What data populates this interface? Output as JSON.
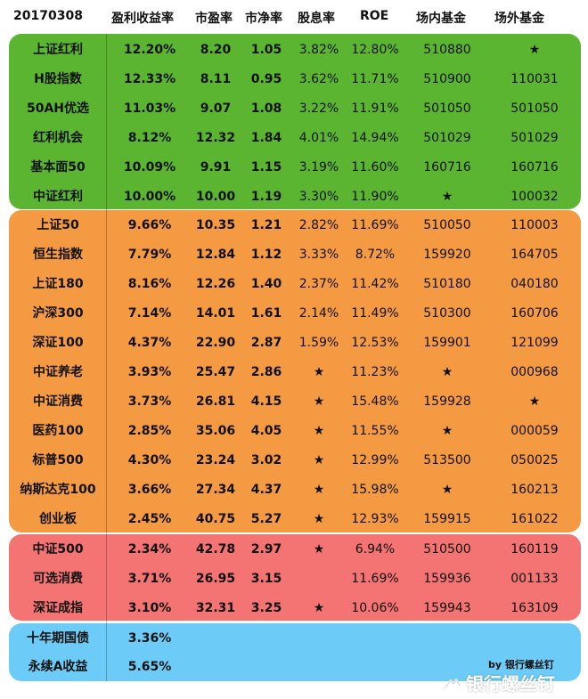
{
  "header": {
    "date": "20170308",
    "columns": [
      "盈利收益率",
      "市盈率",
      "市净率",
      "股息率",
      "ROE",
      "场内基金",
      "场外基金"
    ]
  },
  "colors": {
    "green": "#5CB531",
    "orange": "#F49A43",
    "red": "#F47373",
    "blue": "#6DCCF7"
  },
  "groups": [
    {
      "color": "green",
      "rows": [
        {
          "name": "上证红利",
          "ey": "12.20%",
          "pe": "8.20",
          "pb": "1.05",
          "dy": "3.82%",
          "roe": "12.80%",
          "f1": "510880",
          "f2": "★"
        },
        {
          "name": "H股指数",
          "ey": "12.33%",
          "pe": "8.11",
          "pb": "0.95",
          "dy": "3.62%",
          "roe": "11.71%",
          "f1": "510900",
          "f2": "110031"
        },
        {
          "name": "50AH优选",
          "ey": "11.03%",
          "pe": "9.07",
          "pb": "1.08",
          "dy": "3.22%",
          "roe": "11.91%",
          "f1": "501050",
          "f2": "501050"
        },
        {
          "name": "红利机会",
          "ey": "8.12%",
          "pe": "12.32",
          "pb": "1.84",
          "dy": "4.01%",
          "roe": "14.94%",
          "f1": "501029",
          "f2": "501029"
        },
        {
          "name": "基本面50",
          "ey": "10.09%",
          "pe": "9.91",
          "pb": "1.15",
          "dy": "3.19%",
          "roe": "11.60%",
          "f1": "160716",
          "f2": "160716"
        },
        {
          "name": "中证红利",
          "ey": "10.00%",
          "pe": "10.00",
          "pb": "1.19",
          "dy": "3.30%",
          "roe": "11.90%",
          "f1": "★",
          "f2": "100032"
        }
      ]
    },
    {
      "color": "orange",
      "rows": [
        {
          "name": "上证50",
          "ey": "9.66%",
          "pe": "10.35",
          "pb": "1.21",
          "dy": "2.82%",
          "roe": "11.69%",
          "f1": "510050",
          "f2": "110003"
        },
        {
          "name": "恒生指数",
          "ey": "7.79%",
          "pe": "12.84",
          "pb": "1.12",
          "dy": "3.33%",
          "roe": "8.72%",
          "f1": "159920",
          "f2": "164705"
        },
        {
          "name": "上证180",
          "ey": "8.16%",
          "pe": "12.26",
          "pb": "1.40",
          "dy": "2.37%",
          "roe": "11.42%",
          "f1": "510180",
          "f2": "040180"
        },
        {
          "name": "沪深300",
          "ey": "7.14%",
          "pe": "14.01",
          "pb": "1.61",
          "dy": "2.14%",
          "roe": "11.49%",
          "f1": "510300",
          "f2": "160706"
        },
        {
          "name": "深证100",
          "ey": "4.37%",
          "pe": "22.90",
          "pb": "2.87",
          "dy": "1.59%",
          "roe": "12.53%",
          "f1": "159901",
          "f2": "121099"
        },
        {
          "name": "中证养老",
          "ey": "3.93%",
          "pe": "25.47",
          "pb": "2.86",
          "dy": "★",
          "roe": "11.23%",
          "f1": "★",
          "f2": "000968"
        },
        {
          "name": "中证消费",
          "ey": "3.73%",
          "pe": "26.81",
          "pb": "4.15",
          "dy": "★",
          "roe": "15.48%",
          "f1": "159928",
          "f2": "★"
        },
        {
          "name": "医药100",
          "ey": "2.85%",
          "pe": "35.06",
          "pb": "4.05",
          "dy": "★",
          "roe": "11.55%",
          "f1": "★",
          "f2": "000059"
        },
        {
          "name": "标普500",
          "ey": "4.30%",
          "pe": "23.24",
          "pb": "3.02",
          "dy": "★",
          "roe": "12.99%",
          "f1": "513500",
          "f2": "050025"
        },
        {
          "name": "纳斯达克100",
          "ey": "3.66%",
          "pe": "27.34",
          "pb": "4.37",
          "dy": "★",
          "roe": "15.98%",
          "f1": "★",
          "f2": "160213"
        },
        {
          "name": "创业板",
          "ey": "2.45%",
          "pe": "40.75",
          "pb": "5.27",
          "dy": "★",
          "roe": "12.93%",
          "f1": "159915",
          "f2": "161022"
        }
      ]
    },
    {
      "color": "red",
      "rows": [
        {
          "name": "中证500",
          "ey": "2.34%",
          "pe": "42.78",
          "pb": "2.97",
          "dy": "★",
          "roe": "6.94%",
          "f1": "510500",
          "f2": "160119"
        },
        {
          "name": "可选消费",
          "ey": "3.71%",
          "pe": "26.95",
          "pb": "3.15",
          "dy": "",
          "roe": "11.69%",
          "f1": "159936",
          "f2": "001133"
        },
        {
          "name": "深证成指",
          "ey": "3.10%",
          "pe": "32.31",
          "pb": "3.25",
          "dy": "★",
          "roe": "10.06%",
          "f1": "159943",
          "f2": "163109"
        }
      ]
    },
    {
      "color": "blue",
      "rows": [
        {
          "name": "十年期国债",
          "ey": "3.36%",
          "pe": "",
          "pb": "",
          "dy": "",
          "roe": "",
          "f1": "",
          "f2": ""
        },
        {
          "name": "永续A收益",
          "ey": "5.65%",
          "pe": "",
          "pb": "",
          "dy": "",
          "roe": "",
          "f1": "",
          "f2": ""
        }
      ]
    }
  ],
  "footer": {
    "byline": "by 银行螺丝钉",
    "watermark": "银行螺丝钉",
    "watermark_icon": "weibo-snowball-icon"
  }
}
